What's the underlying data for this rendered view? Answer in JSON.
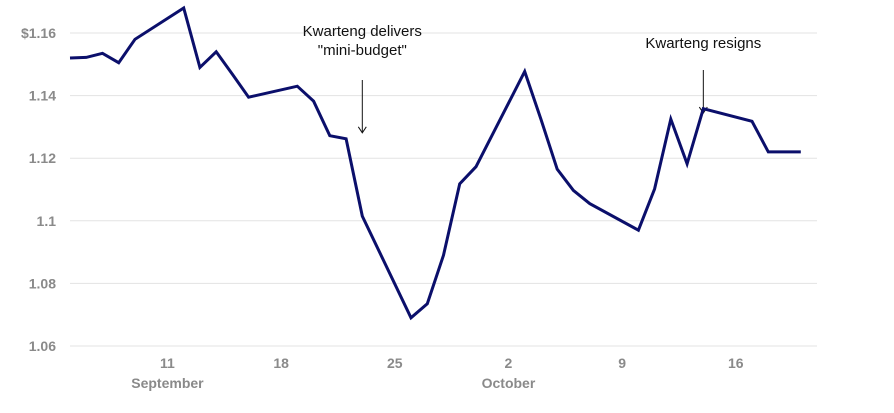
{
  "chart_data": {
    "type": "line",
    "title": "",
    "xlabel": "",
    "ylabel": "",
    "grid": true,
    "x_tick_labels": [
      "11",
      "18",
      "25",
      "2",
      "9",
      "16"
    ],
    "month_labels": [
      "September",
      "October"
    ],
    "y_tick_labels": [
      "1.06",
      "1.08",
      "1.1",
      "1.12",
      "1.14",
      "$1.16"
    ],
    "y_ticks": [
      1.06,
      1.08,
      1.1,
      1.12,
      1.14,
      1.16
    ],
    "ylim": [
      1.06,
      1.165
    ],
    "xlim": [
      "2022-09-05",
      "2022-10-21"
    ],
    "x_tick_dates": [
      "2022-09-11",
      "2022-09-18",
      "2022-09-25",
      "2022-10-02",
      "2022-10-09",
      "2022-10-16"
    ],
    "month_label_dates": [
      "2022-09-11",
      "2022-10-02"
    ],
    "series": [
      {
        "name": "",
        "color": "#0b0f6b",
        "x": [
          "2022-09-05",
          "2022-09-06",
          "2022-09-07",
          "2022-09-08",
          "2022-09-09",
          "2022-09-12",
          "2022-09-13",
          "2022-09-14",
          "2022-09-15",
          "2022-09-16",
          "2022-09-19",
          "2022-09-20",
          "2022-09-21",
          "2022-09-22",
          "2022-09-23",
          "2022-09-26",
          "2022-09-27",
          "2022-09-28",
          "2022-09-29",
          "2022-09-30",
          "2022-10-03",
          "2022-10-04",
          "2022-10-05",
          "2022-10-06",
          "2022-10-07",
          "2022-10-10",
          "2022-10-11",
          "2022-10-12",
          "2022-10-13",
          "2022-10-14",
          "2022-10-17",
          "2022-10-18",
          "2022-10-19",
          "2022-10-20"
        ],
        "values": [
          1.152,
          1.1522,
          1.1535,
          1.1505,
          1.158,
          1.168,
          1.149,
          1.154,
          1.1468,
          1.1395,
          1.143,
          1.1382,
          1.1272,
          1.1262,
          1.1015,
          1.069,
          1.0735,
          1.089,
          1.1118,
          1.1173,
          1.1477,
          1.1325,
          1.1165,
          1.1097,
          1.1055,
          1.097,
          1.1102,
          1.1325,
          1.1182,
          1.1358,
          1.1318,
          1.122,
          1.122,
          1.122
        ]
      }
    ],
    "annotations": [
      {
        "lines": [
          "Kwarteng delivers",
          "\"mini-budget\""
        ],
        "date": "2022-09-23",
        "value": 1.1262
      },
      {
        "lines": [
          "Kwarteng resigns"
        ],
        "date": "2022-10-14",
        "value": 1.1325
      }
    ]
  }
}
